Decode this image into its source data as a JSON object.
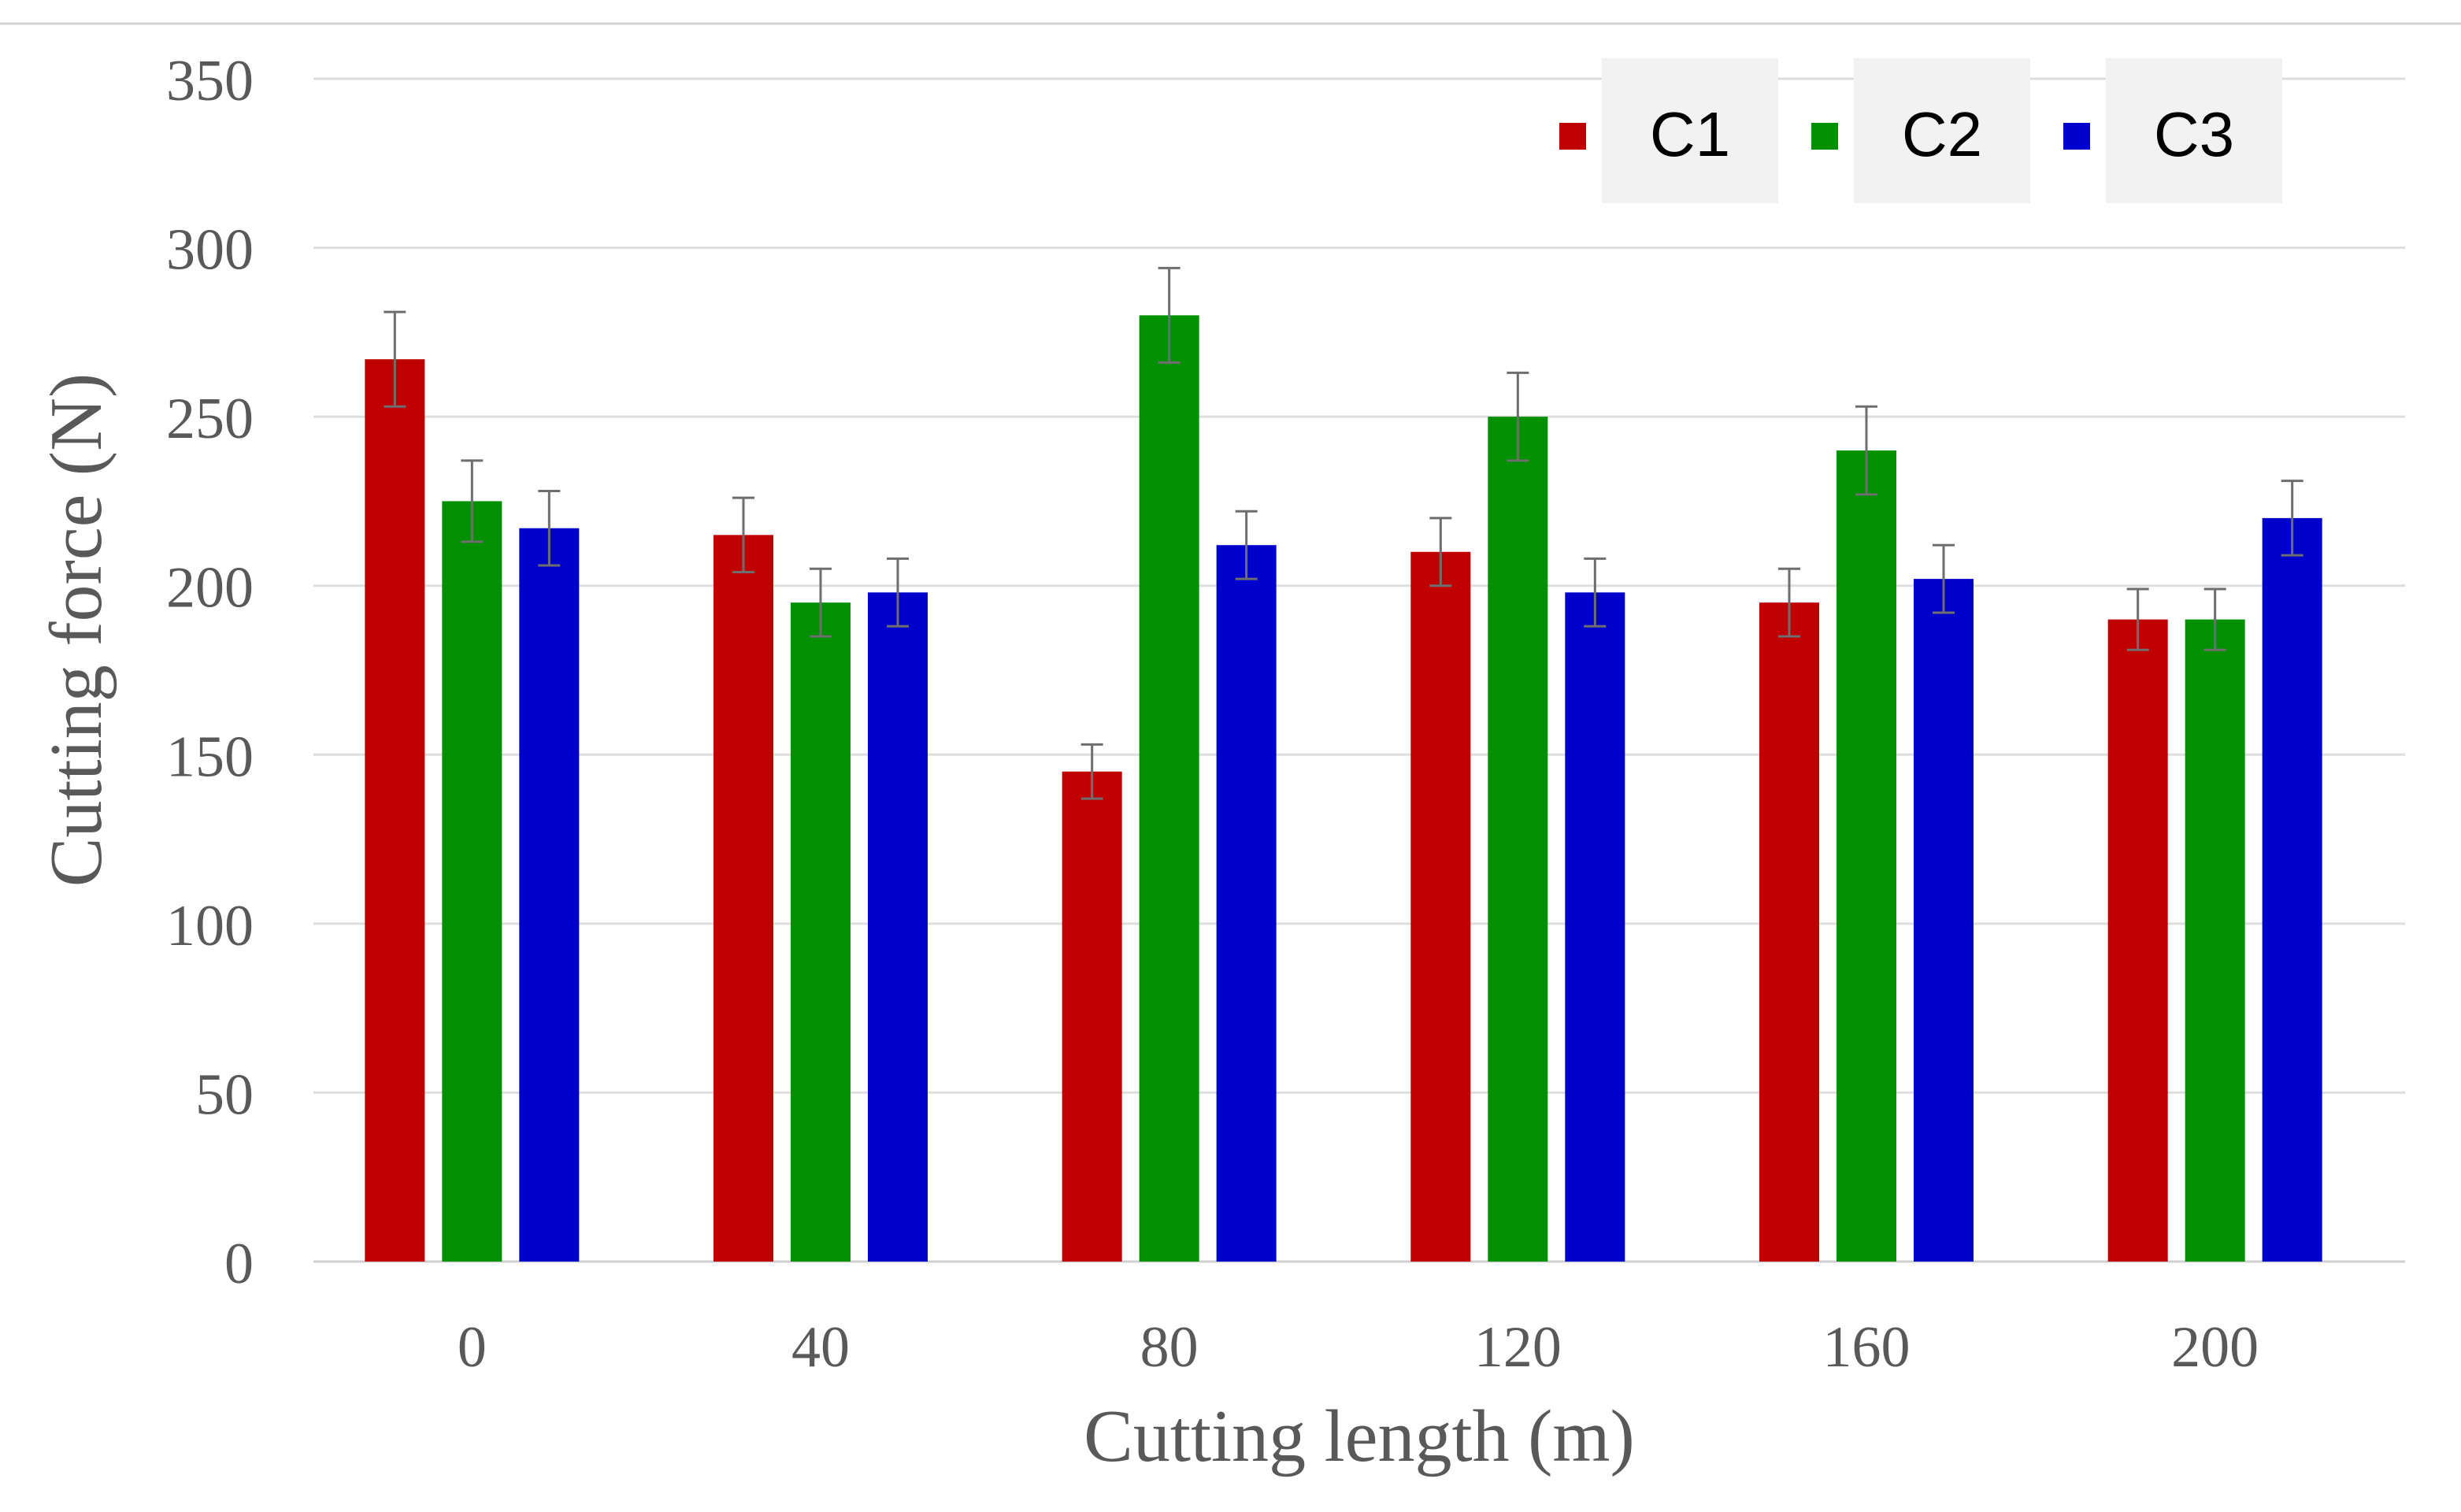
{
  "chart_data": {
    "type": "bar",
    "title": "",
    "xlabel": "Cutting length (m)",
    "ylabel": "Cutting force (N)",
    "ylim": [
      0,
      350
    ],
    "yticks": [
      0,
      50,
      100,
      150,
      200,
      250,
      300,
      350
    ],
    "grid": true,
    "legend_position": "top-right",
    "categories": [
      "0",
      "40",
      "80",
      "120",
      "160",
      "200"
    ],
    "series": [
      {
        "name": "C1",
        "color": "#c00000",
        "values": [
          267,
          215,
          145,
          210,
          195,
          190
        ],
        "errors": [
          14,
          11,
          8,
          10,
          10,
          9
        ]
      },
      {
        "name": "C2",
        "color": "#009000",
        "values": [
          225,
          195,
          280,
          250,
          240,
          190
        ],
        "errors": [
          12,
          10,
          14,
          13,
          13,
          9
        ]
      },
      {
        "name": "C3",
        "color": "#0000cc",
        "values": [
          217,
          198,
          212,
          198,
          202,
          220
        ],
        "errors": [
          11,
          10,
          10,
          10,
          10,
          11
        ]
      }
    ]
  }
}
